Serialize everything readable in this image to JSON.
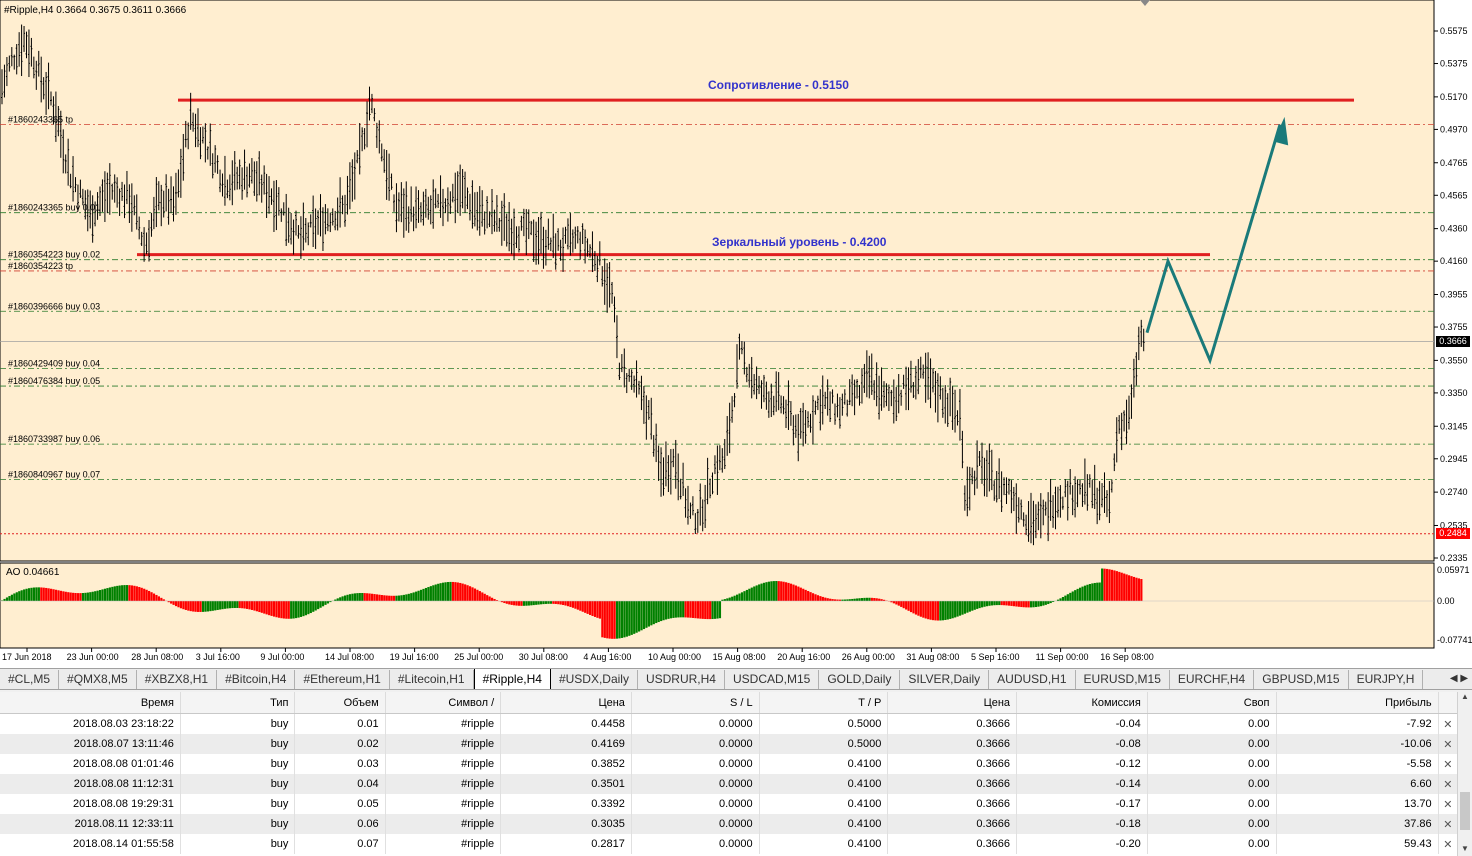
{
  "chart": {
    "header": "#Ripple,H4  0.3664 0.3675 0.3611 0.3666",
    "current_price": "0.3666",
    "low_price": "0.2484",
    "price_ticks": [
      "0.5575",
      "0.5375",
      "0.5170",
      "0.4970",
      "0.4765",
      "0.4565",
      "0.4360",
      "0.4160",
      "0.3955",
      "0.3755",
      "0.3550",
      "0.3350",
      "0.3145",
      "0.2945",
      "0.2740",
      "0.2535",
      "0.2335"
    ],
    "resistance_label": "Сопротивление - 0.5150",
    "mirror_label": "Зеркальный уровень - 0.4200",
    "orders": [
      {
        "id": "#1860243365 buy 0.01",
        "price": 0.4458
      },
      {
        "id": "#1860354223 buy 0.02",
        "price": 0.4169
      },
      {
        "id": "#1860396666 buy 0.03",
        "price": 0.3852
      },
      {
        "id": "#1860429409 buy 0.04",
        "price": 0.3501
      },
      {
        "id": "#1860476384 buy 0.05",
        "price": 0.3392
      },
      {
        "id": "#1860733987 buy 0.06",
        "price": 0.3035
      },
      {
        "id": "#1860840967 buy 0.07",
        "price": 0.2817
      }
    ],
    "tp_labels": [
      "#1860243365 tp",
      "#1860354223 tp"
    ],
    "indicator_label": "AO 0.04661",
    "indicator_ticks": [
      "0.05971",
      "0.00",
      "-0.07741"
    ],
    "time_ticks": [
      "17 Jun 2018",
      "23 Jun 00:00",
      "28 Jun 08:00",
      "3 Jul 16:00",
      "9 Jul 00:00",
      "14 Jul 08:00",
      "19 Jul 16:00",
      "25 Jul 00:00",
      "30 Jul 08:00",
      "4 Aug 16:00",
      "10 Aug 00:00",
      "15 Aug 08:00",
      "20 Aug 16:00",
      "26 Aug 00:00",
      "31 Aug 08:00",
      "5 Sep 16:00",
      "11 Sep 00:00",
      "16 Sep 08:00"
    ],
    "colors": {
      "bg": "#ffeed0",
      "bar": "#000000",
      "level": "#e02020",
      "label": "#3333cc",
      "arrow": "#1a7a7a",
      "ao_up": "#008000",
      "ao_down": "#ff0000"
    }
  },
  "tabs": [
    {
      "label": "#CL,M5",
      "active": false
    },
    {
      "label": "#QMX8,M5",
      "active": false
    },
    {
      "label": "#XBZX8,H1",
      "active": false
    },
    {
      "label": "#Bitcoin,H4",
      "active": false
    },
    {
      "label": "#Ethereum,H1",
      "active": false
    },
    {
      "label": "#Litecoin,H1",
      "active": false
    },
    {
      "label": "#Ripple,H4",
      "active": true
    },
    {
      "label": "#USDX,Daily",
      "active": false
    },
    {
      "label": "USDRUR,H4",
      "active": false
    },
    {
      "label": "USDCAD,M15",
      "active": false
    },
    {
      "label": "GOLD,Daily",
      "active": false
    },
    {
      "label": "SILVER,Daily",
      "active": false
    },
    {
      "label": "AUDUSD,H1",
      "active": false
    },
    {
      "label": "EURUSD,M15",
      "active": false
    },
    {
      "label": "EURCHF,H4",
      "active": false
    },
    {
      "label": "GBPUSD,M15",
      "active": false
    },
    {
      "label": "EURJPY,H",
      "active": false
    }
  ],
  "table": {
    "headers": [
      "Время",
      "Тип",
      "Объем",
      "Символ",
      "Цена",
      "S / L",
      "T / P",
      "Цена",
      "Комиссия",
      "Своп",
      "Прибыль"
    ],
    "rows": [
      [
        "2018.08.03 23:18:22",
        "buy",
        "0.01",
        "#ripple",
        "0.4458",
        "0.0000",
        "0.5000",
        "0.3666",
        "-0.04",
        "0.00",
        "-7.92"
      ],
      [
        "2018.08.07 13:11:46",
        "buy",
        "0.02",
        "#ripple",
        "0.4169",
        "0.0000",
        "0.5000",
        "0.3666",
        "-0.08",
        "0.00",
        "-10.06"
      ],
      [
        "2018.08.08 01:01:46",
        "buy",
        "0.03",
        "#ripple",
        "0.3852",
        "0.0000",
        "0.4100",
        "0.3666",
        "-0.12",
        "0.00",
        "-5.58"
      ],
      [
        "2018.08.08 11:12:31",
        "buy",
        "0.04",
        "#ripple",
        "0.3501",
        "0.0000",
        "0.4100",
        "0.3666",
        "-0.14",
        "0.00",
        "6.60"
      ],
      [
        "2018.08.08 19:29:31",
        "buy",
        "0.05",
        "#ripple",
        "0.3392",
        "0.0000",
        "0.4100",
        "0.3666",
        "-0.17",
        "0.00",
        "13.70"
      ],
      [
        "2018.08.11 12:33:11",
        "buy",
        "0.06",
        "#ripple",
        "0.3035",
        "0.0000",
        "0.4100",
        "0.3666",
        "-0.18",
        "0.00",
        "37.86"
      ],
      [
        "2018.08.14 01:55:58",
        "buy",
        "0.07",
        "#ripple",
        "0.2817",
        "0.0000",
        "0.4100",
        "0.3666",
        "-0.20",
        "0.00",
        "59.43"
      ]
    ]
  }
}
